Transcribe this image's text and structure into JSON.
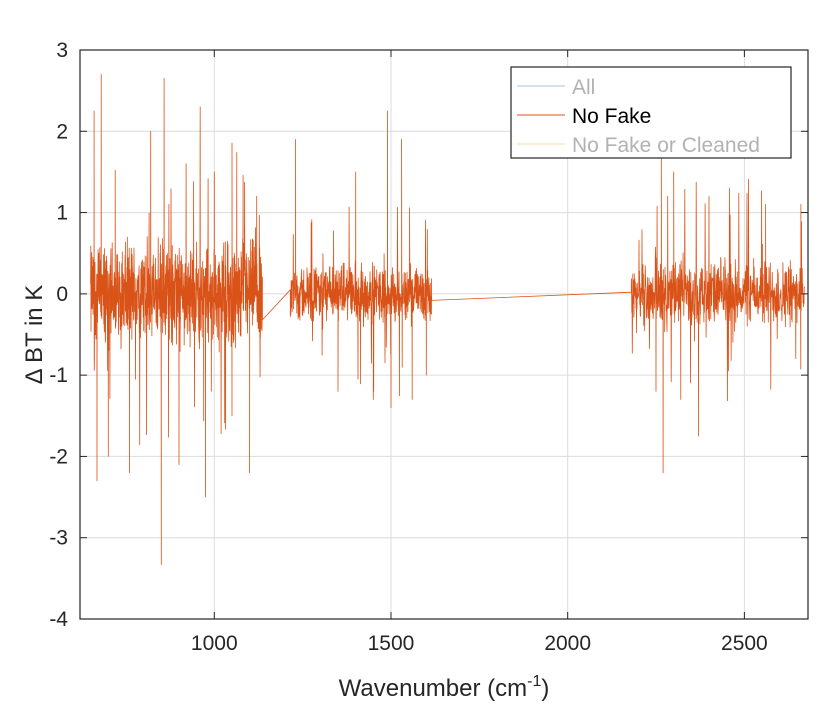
{
  "chart_data": {
    "type": "line",
    "title": "",
    "xlabel": {
      "text": "Wavenumber (cm",
      "sup": "-1",
      "suffix": ")"
    },
    "ylabel": "Δ BT in K",
    "xlim": [
      620,
      2680
    ],
    "ylim": [
      -4,
      3
    ],
    "xticks": [
      1000,
      1500,
      2000,
      2500
    ],
    "yticks": [
      -4,
      -3,
      -2,
      -1,
      0,
      1,
      2,
      3
    ],
    "xtick_labels": [
      "1000",
      "1500",
      "2000",
      "2500"
    ],
    "ytick_labels": [
      "-4",
      "-3",
      "-2",
      "-1",
      "0",
      "1",
      "2",
      "3"
    ],
    "grid": true,
    "legend_position": "top-right",
    "colors": {
      "all": "#a9c6df",
      "no_fake": "#d95319",
      "cleaned": "#f3dca6",
      "axis": "#262626",
      "grid": "#dcdcdc"
    },
    "series": [
      {
        "name": "All",
        "color": "#a9c6df",
        "muted": true
      },
      {
        "name": "No Fake",
        "color": "#d95319",
        "muted": false
      },
      {
        "name": "No Fake or Cleaned",
        "color": "#f3dca6",
        "muted": true
      }
    ],
    "bands": [
      {
        "x0": 650,
        "x1": 1136,
        "amp": 0.55,
        "spike": 1.9,
        "n": 900
      },
      {
        "x0": 1215,
        "x1": 1615,
        "amp": 0.3,
        "spike": 1.3,
        "n": 650
      },
      {
        "x0": 2180,
        "x1": 2670,
        "amp": 0.35,
        "spike": 1.5,
        "n": 700
      }
    ],
    "peaks": [
      [
        660,
        2.25
      ],
      [
        668,
        -2.3
      ],
      [
        680,
        2.7
      ],
      [
        700,
        -2.0
      ],
      [
        760,
        -2.2
      ],
      [
        820,
        2.0
      ],
      [
        850,
        -3.33
      ],
      [
        858,
        2.65
      ],
      [
        900,
        -2.1
      ],
      [
        960,
        2.3
      ],
      [
        975,
        -2.5
      ],
      [
        1000,
        1.5
      ],
      [
        1050,
        -1.5
      ],
      [
        1100,
        -2.2
      ],
      [
        1120,
        1.2
      ],
      [
        1230,
        1.9
      ],
      [
        1350,
        -1.2
      ],
      [
        1400,
        1.5
      ],
      [
        1450,
        -1.3
      ],
      [
        1490,
        2.25
      ],
      [
        1500,
        -1.4
      ],
      [
        1530,
        1.9
      ],
      [
        1560,
        -1.3
      ],
      [
        1600,
        -1.0
      ],
      [
        2250,
        -1.2
      ],
      [
        2265,
        1.75
      ],
      [
        2270,
        -2.2
      ],
      [
        2300,
        1.5
      ],
      [
        2320,
        -1.3
      ],
      [
        2370,
        -1.75
      ],
      [
        2400,
        1.2
      ],
      [
        2560,
        1.1
      ],
      [
        2660,
        1.1
      ]
    ],
    "bridges": [
      {
        "x": [
          1136,
          1215
        ],
        "y": [
          -0.32,
          0.05
        ]
      },
      {
        "x": [
          1615,
          2180
        ],
        "y": [
          -0.08,
          0.02
        ]
      }
    ]
  }
}
